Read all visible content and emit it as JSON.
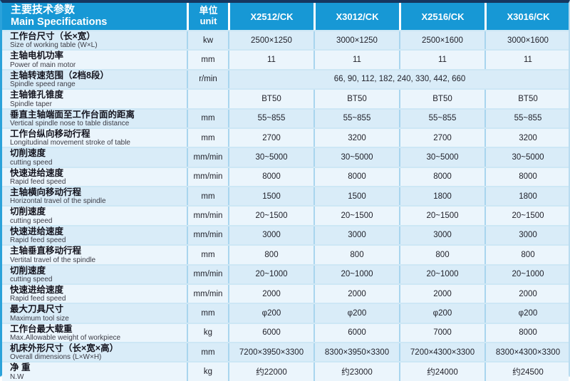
{
  "header": {
    "title_cn": "主要技术参数",
    "title_en": "Main Specifications",
    "unit_cn": "单位",
    "unit_en": "unit",
    "models": [
      "X2512/CK",
      "X3012/CK",
      "X2516/CK",
      "X3016/CK"
    ]
  },
  "colors": {
    "header_bg": "#1798d5",
    "top_bar": "#16365f",
    "left_stripe": "#2ba2da",
    "row_odd": "#d9ecf8",
    "row_even": "#ebf5fc",
    "divider_v": "#a9d5ee",
    "divider_h": "#cde7f5",
    "header_text": "#ffffff",
    "label_cn": "#14141e",
    "label_en": "#3c3c46",
    "value_text": "#1f1f28"
  },
  "rows": [
    {
      "cn": "工作台尺寸（长×宽）",
      "en": "Size of working table (W×L)",
      "unit": "kw",
      "values": [
        "2500×1250",
        "3000×1250",
        "2500×1600",
        "3000×1600"
      ]
    },
    {
      "cn": "主轴电机功率",
      "en": "Power of main motor",
      "unit": "mm",
      "values": [
        "11",
        "11",
        "11",
        "11"
      ]
    },
    {
      "cn": "主轴转速范围（2档8段）",
      "en": "Spindle speed range",
      "unit": "r/min",
      "span_value": "66, 90, 112, 182, 240, 330, 442, 660"
    },
    {
      "cn": "主轴锥孔锥度",
      "en": "Spindle taper",
      "unit": "",
      "values": [
        "BT50",
        "BT50",
        "BT50",
        "BT50"
      ]
    },
    {
      "cn": "垂直主轴端面至工作台面的距离",
      "en": "Vertical spindle nose to table distance",
      "unit": "mm",
      "values": [
        "55~855",
        "55~855",
        "55~855",
        "55~855"
      ]
    },
    {
      "cn": "工作台纵向移动行程",
      "en": "Longitudinal movement stroke of table",
      "unit": "mm",
      "values": [
        "2700",
        "3200",
        "2700",
        "3200"
      ]
    },
    {
      "cn": "切削速度",
      "en": "cutting speed",
      "unit": "mm/min",
      "values": [
        "30~5000",
        "30~5000",
        "30~5000",
        "30~5000"
      ]
    },
    {
      "cn": "快速进给速度",
      "en": "Rapid feed speed",
      "unit": "mm/min",
      "values": [
        "8000",
        "8000",
        "8000",
        "8000"
      ]
    },
    {
      "cn": "主轴横向移动行程",
      "en": "Horizontal travel of the spindle",
      "unit": "mm",
      "values": [
        "1500",
        "1500",
        "1800",
        "1800"
      ]
    },
    {
      "cn": "切削速度",
      "en": "cutting speed",
      "unit": "mm/min",
      "values": [
        "20~1500",
        "20~1500",
        "20~1500",
        "20~1500"
      ]
    },
    {
      "cn": "快速进给速度",
      "en": "Rapid feed speed",
      "unit": "mm/min",
      "values": [
        "3000",
        "3000",
        "3000",
        "3000"
      ]
    },
    {
      "cn": "主轴垂直移动行程",
      "en": "Vertital travel of the spindle",
      "unit": "mm",
      "values": [
        "800",
        "800",
        "800",
        "800"
      ]
    },
    {
      "cn": "切削速度",
      "en": "cutting speed",
      "unit": "mm/min",
      "values": [
        "20~1000",
        "20~1000",
        "20~1000",
        "20~1000"
      ]
    },
    {
      "cn": "快速进给速度",
      "en": "Rapid feed speed",
      "unit": "mm/min",
      "values": [
        "2000",
        "2000",
        "2000",
        "2000"
      ]
    },
    {
      "cn": "最大刀具尺寸",
      "en": "Maximum tool size",
      "unit": "mm",
      "values": [
        "φ200",
        "φ200",
        "φ200",
        "φ200"
      ]
    },
    {
      "cn": "工作台最大载重",
      "en": "Max.Allowable weight of workpiece",
      "unit": "kg",
      "values": [
        "6000",
        "6000",
        "7000",
        "8000"
      ]
    },
    {
      "cn": "机床外形尺寸（长×宽×高）",
      "en": "Overall dimensions (L×W×H)",
      "unit": "mm",
      "values": [
        "7200×3950×3300",
        "8300×3950×3300",
        "7200×4300×3300",
        "8300×4300×3300"
      ]
    },
    {
      "cn": "净 重",
      "en": "N.W",
      "unit": "kg",
      "values": [
        "约22000",
        "约23000",
        "约24000",
        "约24500"
      ]
    }
  ]
}
